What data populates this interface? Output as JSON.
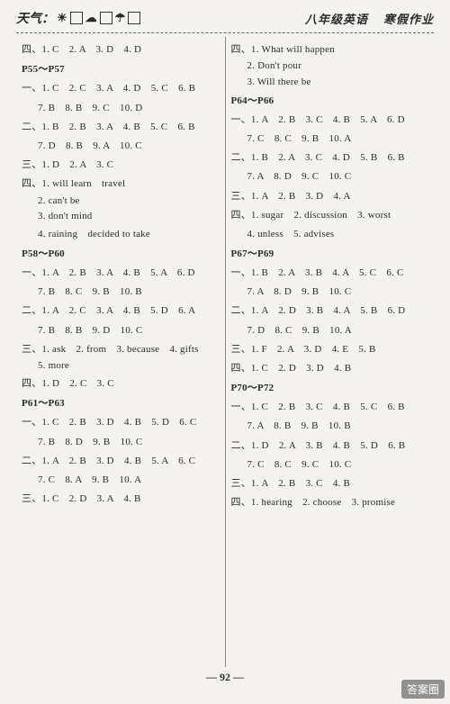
{
  "header": {
    "weather_label": "天气：",
    "grade_label": "八年级英语",
    "book_label": "寒假作业"
  },
  "left": [
    {
      "cls": "line",
      "t": "四、1. C　2. A　3. D　4. D"
    },
    {
      "cls": "line section-head",
      "t": "P55～P57"
    },
    {
      "cls": "line",
      "t": "一、1. C　2. C　3. A　4. D　5. C　6. B"
    },
    {
      "cls": "line indent",
      "t": "7. B　8. B　9. C　10. D"
    },
    {
      "cls": "line",
      "t": "二、1. B　2. B　3. A　4. B　5. C　6. B"
    },
    {
      "cls": "line indent",
      "t": "7. D　8. B　9. A　10. C"
    },
    {
      "cls": "line",
      "t": "三、1. D　2. A　3. C"
    },
    {
      "cls": "line",
      "t": "四、1. will learn　travel"
    },
    {
      "cls": "line indent",
      "t": "2. can't be"
    },
    {
      "cls": "line indent",
      "t": "3. don't mind"
    },
    {
      "cls": "line indent",
      "t": "4. raining　decided to take"
    },
    {
      "cls": "line section-head",
      "t": "P58～P60"
    },
    {
      "cls": "line",
      "t": "一、1. A　2. B　3. A　4. B　5. A　6. D"
    },
    {
      "cls": "line indent",
      "t": "7. B　8. C　9. B　10. B"
    },
    {
      "cls": "line",
      "t": "二、1. A　2. C　3. A　4. B　5. D　6. A"
    },
    {
      "cls": "line indent",
      "t": "7. B　8. B　9. D　10. C"
    },
    {
      "cls": "line",
      "t": "三、1. ask　2. from　3. because　4. gifts"
    },
    {
      "cls": "line indent",
      "t": "5. more"
    },
    {
      "cls": "line",
      "t": "四、1. D　2. C　3. C"
    },
    {
      "cls": "line section-head",
      "t": "P61～P63"
    },
    {
      "cls": "line",
      "t": "一、1. C　2. B　3. D　4. B　5. D　6. C"
    },
    {
      "cls": "line indent",
      "t": "7. B　8. D　9. B　10. C"
    },
    {
      "cls": "line",
      "t": "二、1. A　2. B　3. D　4. B　5. A　6. C"
    },
    {
      "cls": "line indent",
      "t": "7. C　8. A　9. B　10. A"
    },
    {
      "cls": "line",
      "t": "三、1. C　2. D　3. A　4. B"
    }
  ],
  "right": [
    {
      "cls": "line",
      "t": "四、1. What will happen"
    },
    {
      "cls": "line indent",
      "t": "2. Don't pour"
    },
    {
      "cls": "line indent",
      "t": "3. Will there be"
    },
    {
      "cls": "line section-head",
      "t": "P64～P66"
    },
    {
      "cls": "line",
      "t": "一、1. A　2. B　3. C　4. B　5. A　6. D"
    },
    {
      "cls": "line indent",
      "t": "7. C　8. C　9. B　10. A"
    },
    {
      "cls": "line",
      "t": "二、1. B　2. A　3. C　4. D　5. B　6. B"
    },
    {
      "cls": "line indent",
      "t": "7. A　8. D　9. C　10. C"
    },
    {
      "cls": "line",
      "t": "三、1. A　2. B　3. D　4. A"
    },
    {
      "cls": "line",
      "t": "四、1. sugar　2. discussion　3. worst"
    },
    {
      "cls": "line indent",
      "t": "4. unless　5. advises"
    },
    {
      "cls": "line section-head",
      "t": "P67～P69"
    },
    {
      "cls": "line",
      "t": "一、1. B　2. A　3. B　4. A　5. C　6. C"
    },
    {
      "cls": "line indent",
      "t": "7. A　8. D　9. B　10. C"
    },
    {
      "cls": "line",
      "t": "二、1. A　2. D　3. B　4. A　5. B　6. D"
    },
    {
      "cls": "line indent",
      "t": "7. D　8. C　9. B　10. A"
    },
    {
      "cls": "line",
      "t": "三、1. F　2. A　3. D　4. E　5. B"
    },
    {
      "cls": "line",
      "t": "四、1. C　2. D　3. D　4. B"
    },
    {
      "cls": "line section-head",
      "t": "P70～P72"
    },
    {
      "cls": "line",
      "t": "一、1. C　2. B　3. C　4. B　5. C　6. B"
    },
    {
      "cls": "line indent",
      "t": "7. A　8. B　9. B　10. B"
    },
    {
      "cls": "line",
      "t": "二、1. D　2. A　3. B　4. B　5. D　6. B"
    },
    {
      "cls": "line indent",
      "t": "7. C　8. C　9. C　10. C"
    },
    {
      "cls": "line",
      "t": "三、1. A　2. B　3. C　4. B"
    },
    {
      "cls": "line",
      "t": "四、1. hearing　2. choose　3. promise"
    }
  ],
  "page_number": "— 92 —",
  "watermark": "答案圈"
}
